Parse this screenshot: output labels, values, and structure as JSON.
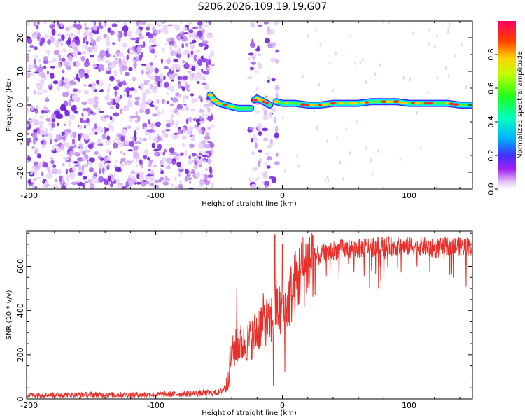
{
  "title": "S206.2026.109.19.19.G07",
  "chart_data": [
    {
      "type": "heatmap",
      "name": "spectrogram",
      "xlabel": "Height of straight line (km)",
      "ylabel": "Frequency (Hz)",
      "xlim": [
        -202,
        150
      ],
      "ylim": [
        -25,
        25
      ],
      "xticks": [
        "-200",
        "-100",
        "0",
        "100"
      ],
      "xtick_values": [
        -200,
        -100,
        0,
        100
      ],
      "yticks": [
        "-20",
        "-10",
        "0",
        "10",
        "20"
      ],
      "ytick_values": [
        -20,
        -10,
        0,
        10,
        20
      ],
      "signal_trace": {
        "x": [
          -57,
          -54,
          -50,
          -45,
          -40,
          -35,
          -30,
          -25,
          -22,
          -20,
          -17,
          -15,
          -12,
          -10,
          -5,
          0,
          10,
          20,
          30,
          40,
          50,
          60,
          70,
          80,
          90,
          100,
          110,
          120,
          130,
          140,
          150
        ],
        "y": [
          3,
          1.5,
          0.5,
          0,
          -0.5,
          -1,
          -1,
          -1,
          1.5,
          2,
          1.5,
          1,
          0.5,
          0,
          1,
          0.5,
          0.5,
          0,
          0,
          0.5,
          0.5,
          0.5,
          1,
          1,
          1,
          0.5,
          0.5,
          0.5,
          0.5,
          0,
          0
        ]
      },
      "noise_regions": [
        {
          "x_range": [
            -202,
            -55
          ],
          "density": "dense"
        },
        {
          "x_range": [
            -26,
            -17
          ],
          "density": "medium"
        },
        {
          "x_range": [
            -14,
            -4
          ],
          "density": "medium"
        }
      ]
    },
    {
      "type": "colorbar",
      "name": "colorbar",
      "label": "Normalized spectral amplitude",
      "range": [
        0,
        1
      ],
      "ticks": [
        "0.0",
        "0.2",
        "0.4",
        "0.6",
        "0.8"
      ],
      "tick_values": [
        0,
        0.2,
        0.4,
        0.6,
        0.8
      ]
    },
    {
      "type": "line",
      "name": "snr",
      "xlabel": "Height of straight line (km)",
      "ylabel": "SNR (10 * v/v)",
      "xlim": [
        -202,
        150
      ],
      "ylim": [
        0,
        760
      ],
      "xticks": [
        "-200",
        "-100",
        "0",
        "100"
      ],
      "xtick_values": [
        -200,
        -100,
        0,
        100
      ],
      "yticks": [
        "0",
        "200",
        "400",
        "600"
      ],
      "ytick_values": [
        0,
        200,
        400,
        600
      ],
      "series": [
        {
          "name": "SNR",
          "color": "#e8302a",
          "envelope_x": [
            -202,
            -100,
            -50,
            -44,
            -40,
            -35,
            -30,
            -25,
            -20,
            -15,
            -10,
            -5,
            0,
            5,
            10,
            15,
            20,
            25,
            30,
            40,
            50,
            60,
            70,
            80,
            90,
            100,
            110,
            120,
            130,
            140,
            150
          ],
          "envelope_y": [
            18,
            20,
            28,
            60,
            200,
            250,
            250,
            270,
            310,
            360,
            340,
            420,
            380,
            450,
            520,
            570,
            610,
            640,
            650,
            670,
            680,
            680,
            690,
            690,
            690,
            690,
            690,
            680,
            690,
            690,
            690
          ],
          "spikes": [
            {
              "x": -6,
              "y": 745
            },
            {
              "x": -7,
              "y": 60
            },
            {
              "x": 0,
              "y": 700
            },
            {
              "x": 2,
              "y": 120
            },
            {
              "x": -36,
              "y": 500
            }
          ]
        }
      ]
    }
  ],
  "colors": {
    "line": "#e8302a",
    "noise": "#7a20e0",
    "axis": "#000000"
  }
}
